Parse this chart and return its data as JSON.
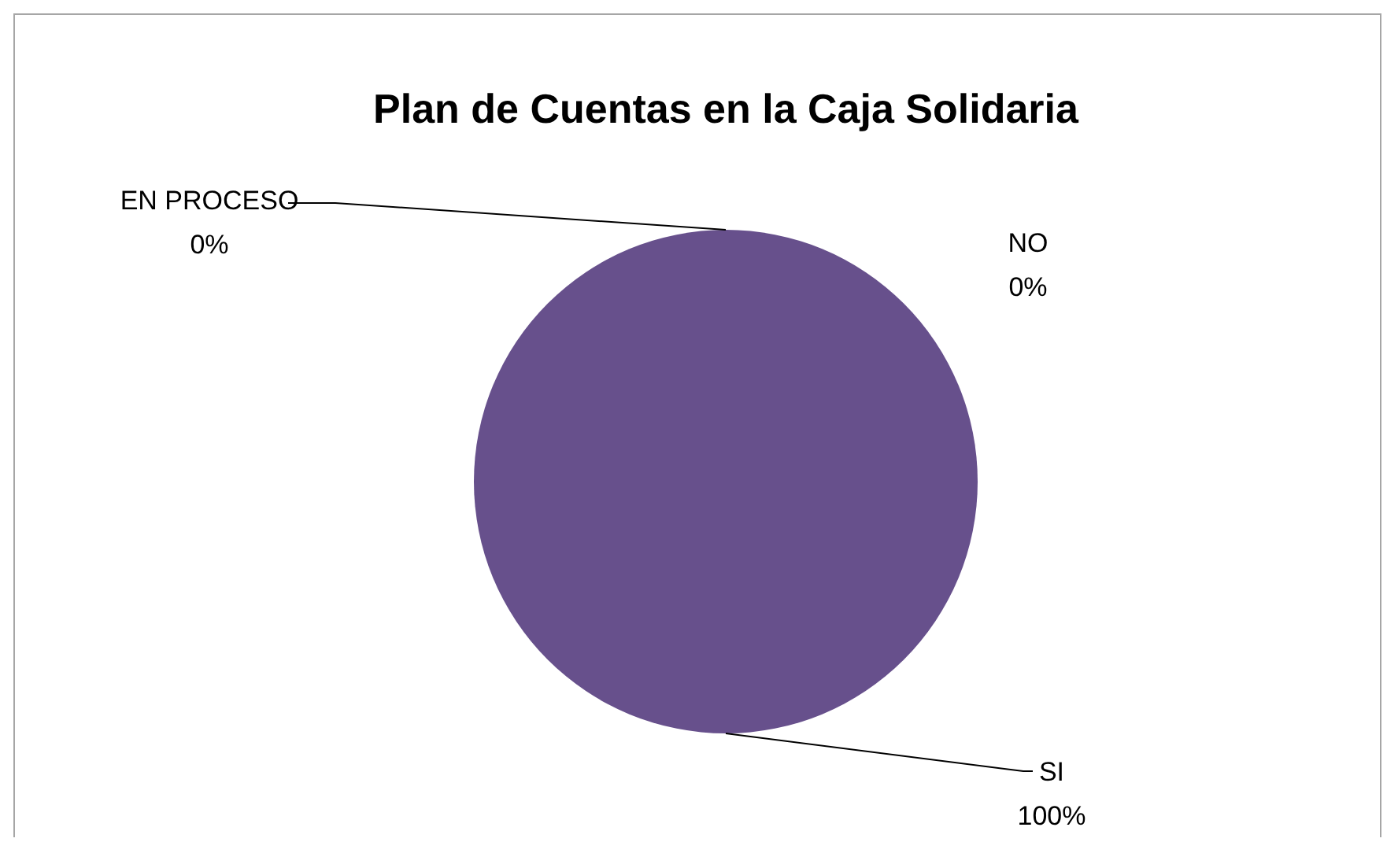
{
  "chart_data": {
    "type": "pie",
    "title": "Plan de Cuentas en la Caja Solidaria",
    "categories": [
      "SI",
      "NO",
      "EN PROCESO"
    ],
    "values": [
      100,
      0,
      0
    ],
    "value_labels": [
      "100%",
      "0%",
      "0%"
    ],
    "colors": [
      "#67508c",
      "#4f81bd",
      "#c0504d"
    ]
  }
}
